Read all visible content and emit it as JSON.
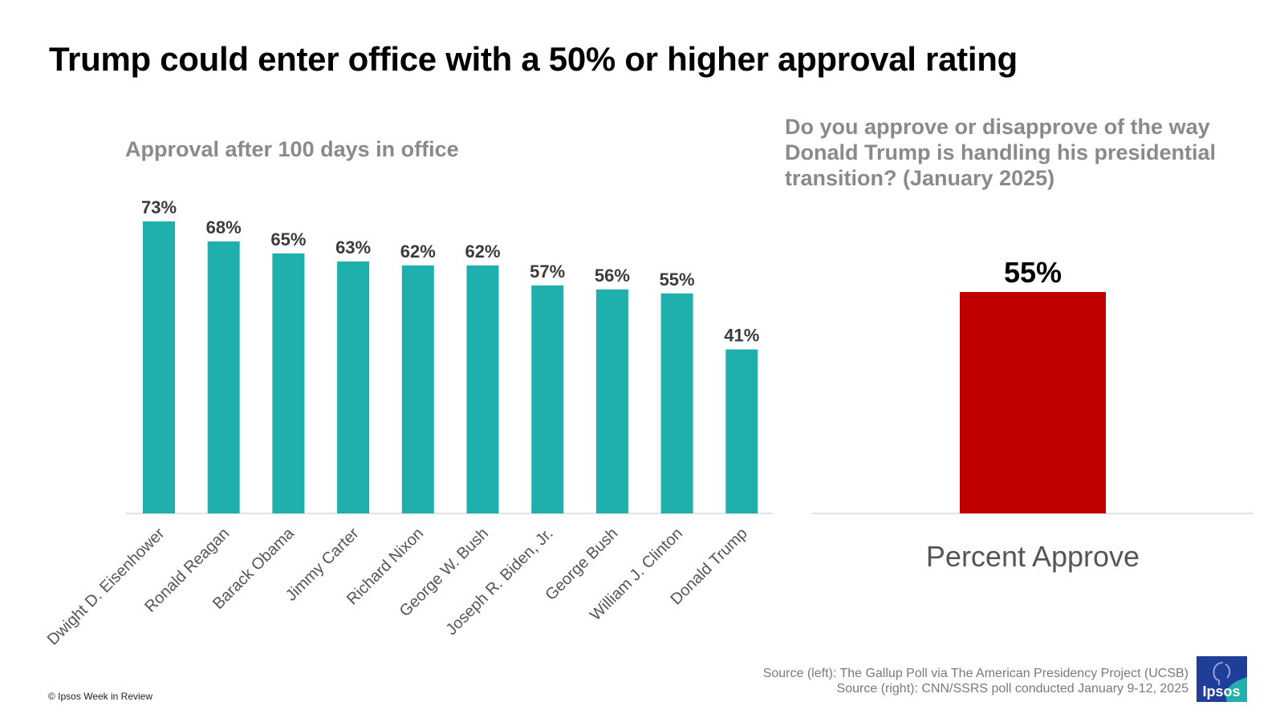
{
  "title": "Trump could enter office with a 50% or higher approval rating",
  "copyright": "© Ipsos Week in Review",
  "sources": {
    "left": "Source (left):  The Gallup Poll via The American Presidency Project (UCSB)",
    "right": "Source (right): CNN/SSRS poll conducted January 9-12, 2025"
  },
  "logo": {
    "text": "Ipsos",
    "colors": [
      "#1f3e98",
      "#1fb0ad"
    ]
  },
  "chart_data": [
    {
      "type": "bar",
      "title": "Approval after 100 days in office",
      "categories": [
        "Dwight D. Eisenhower",
        "Ronald Reagan",
        "Barack Obama",
        "Jimmy Carter",
        "Richard Nixon",
        "George W. Bush",
        "Joseph R. Biden, Jr.",
        "George Bush",
        "William J. Clinton",
        "Donald Trump"
      ],
      "values": [
        73,
        68,
        65,
        63,
        62,
        62,
        57,
        56,
        55,
        41
      ],
      "labels": [
        "73%",
        "68%",
        "65%",
        "63%",
        "62%",
        "62%",
        "57%",
        "56%",
        "55%",
        "41%"
      ],
      "ylim": [
        0,
        73
      ],
      "color": "#1fb0ad",
      "grid": false
    },
    {
      "type": "bar",
      "title": "Do you approve or disapprove of the way Donald Trump is handling his presidential transition? (January 2025)",
      "categories": [
        "Percent Approve"
      ],
      "values": [
        55
      ],
      "labels": [
        "55%"
      ],
      "ylim": [
        0,
        55
      ],
      "color": "#c00000",
      "grid": false
    }
  ]
}
